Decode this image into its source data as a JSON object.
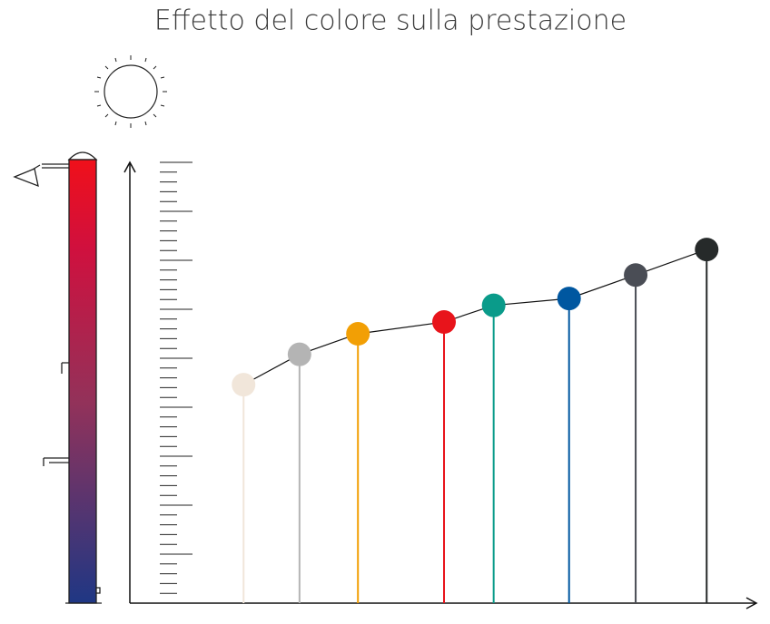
{
  "chart_data": {
    "type": "lollipop",
    "title": "Effetto del colore sulla prestazione",
    "x": [
      18.1,
      27.0,
      36.3,
      50.0,
      57.9,
      69.9,
      80.5,
      91.8
    ],
    "values": [
      22.3,
      25.4,
      27.5,
      28.7,
      30.4,
      31.1,
      33.5,
      36.1
    ],
    "colors": [
      "#f1e6da",
      "#b4b4b4",
      "#f29f05",
      "#e8141b",
      "#0a9b8a",
      "#0057a0",
      "#4a4d55",
      "#262a2a"
    ],
    "xlim": [
      0,
      100
    ],
    "ylim": [
      0,
      45
    ],
    "yticks": [
      1,
      2,
      3,
      4,
      5,
      6,
      7,
      8,
      9,
      10,
      11,
      12,
      13,
      14,
      15,
      16,
      17,
      18,
      19,
      20,
      21,
      22,
      23,
      24,
      25,
      26,
      27,
      28,
      29,
      30,
      31,
      32,
      33,
      34,
      35,
      36,
      37,
      38,
      39,
      40,
      41,
      42,
      43,
      44,
      45
    ]
  }
}
